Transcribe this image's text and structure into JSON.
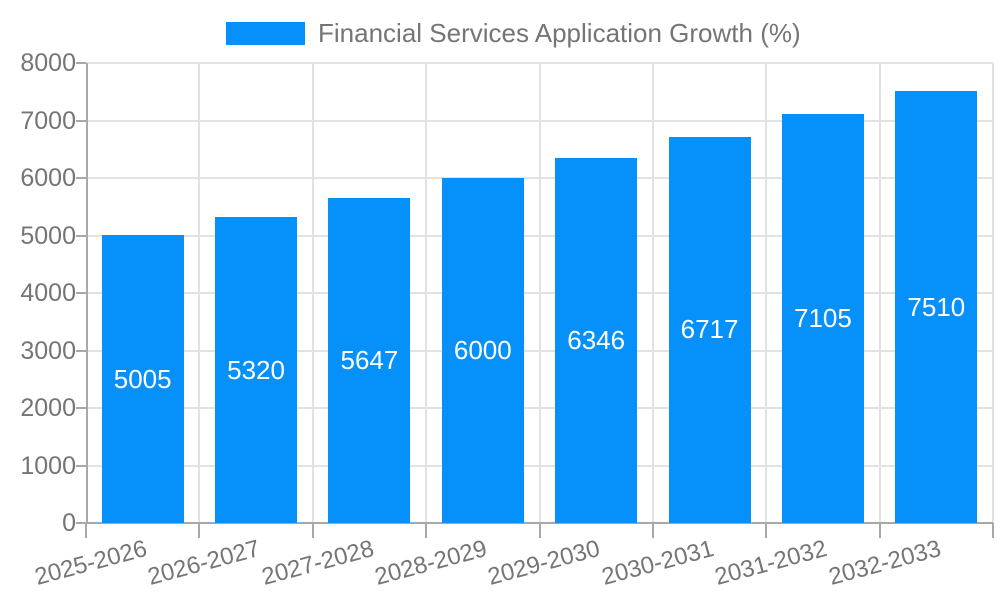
{
  "chart_data": {
    "type": "bar",
    "title": "Financial Services Application Growth (%)",
    "legend": [
      "Financial Services Application Growth (%)"
    ],
    "legend_position": "top-center",
    "categories": [
      "2025-2026",
      "2026-2027",
      "2027-2028",
      "2028-2029",
      "2029-2030",
      "2030-2031",
      "2031-2032",
      "2032-2033"
    ],
    "series": [
      {
        "name": "Financial Services Application Growth (%)",
        "values": [
          5005,
          5320,
          5647,
          6000,
          6346,
          6717,
          7105,
          7510
        ]
      }
    ],
    "values": [
      5005,
      5320,
      5647,
      6000,
      6346,
      6717,
      7105,
      7510
    ],
    "bar_labels": [
      "5005",
      "5320",
      "5647",
      "6000",
      "6346",
      "6717",
      "7105",
      "7510"
    ],
    "xlabel": "",
    "ylabel": "",
    "ylim": [
      0,
      8000
    ],
    "ytick_step": 1000,
    "yticks": [
      0,
      1000,
      2000,
      3000,
      4000,
      5000,
      6000,
      7000,
      8000
    ],
    "grid": true,
    "colors": {
      "bar": "#0690fa",
      "bar_label_text": "#ffffff",
      "gridline": "#e2e2e2",
      "axis_line": "#a8a8a8",
      "tick_mark": "#a8a8a8",
      "tick_text": "#757575",
      "legend_text": "#757575"
    }
  }
}
